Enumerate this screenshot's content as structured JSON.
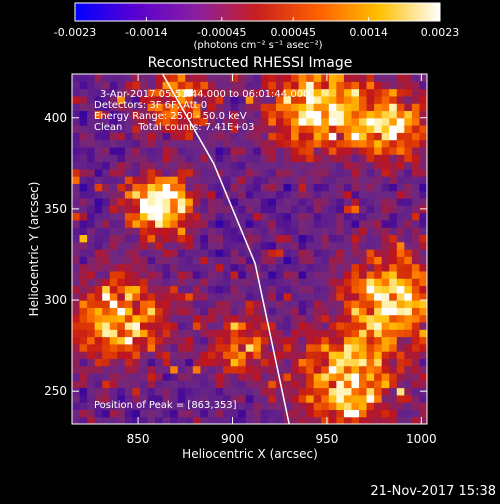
{
  "chart_data": {
    "type": "heatmap",
    "title": "Reconstructed RHESSI Image",
    "xlabel": "Heliocentric X (arcsec)",
    "ylabel": "Heliocentric Y (arcsec)",
    "xlim": [
      815,
      1003
    ],
    "ylim": [
      232,
      424
    ],
    "xticks": [
      850,
      900,
      950,
      1000
    ],
    "yticks": [
      250,
      300,
      350,
      400
    ],
    "colorbar": {
      "ticks": [
        -0.0023,
        -0.0014,
        -0.00045,
        0.00045,
        0.0014,
        0.0023
      ],
      "tick_labels": [
        "-0.0023",
        "-0.0014",
        "-0.00045",
        "0.00045",
        "0.0014",
        "0.0023"
      ],
      "units": "(photons cm⁻² s⁻¹ asec⁻²)",
      "colors": [
        "#0000ff",
        "#5a00d0",
        "#8a20a0",
        "#c82020",
        "#ff6000",
        "#ffc000",
        "#ffffff"
      ]
    },
    "annotations": {
      "time_range": "3-Apr-2017 05:51:44.000 to 06:01:44.000",
      "detectors": "Detectors: 3F 6F, Att 0",
      "energy": "Energy Range: 25.0 - 50.0 keV",
      "clean": "Clean     Total counts: 7.41E+03",
      "peak": "Position of Peak = [863,353]"
    },
    "peak": [
      863,
      353
    ],
    "hot_regions": [
      {
        "x": 862,
        "y": 352,
        "strength": 1.0,
        "radius": 16
      },
      {
        "x": 945,
        "y": 405,
        "strength": 0.8,
        "radius": 24
      },
      {
        "x": 985,
        "y": 395,
        "strength": 0.7,
        "radius": 20
      },
      {
        "x": 985,
        "y": 300,
        "strength": 0.75,
        "radius": 26
      },
      {
        "x": 840,
        "y": 290,
        "strength": 0.7,
        "radius": 24
      },
      {
        "x": 960,
        "y": 255,
        "strength": 0.7,
        "radius": 26
      },
      {
        "x": 870,
        "y": 410,
        "strength": 0.5,
        "radius": 20
      },
      {
        "x": 905,
        "y": 275,
        "strength": 0.5,
        "radius": 18
      }
    ],
    "limb_line": [
      [
        863,
        424
      ],
      [
        890,
        375
      ],
      [
        912,
        320
      ],
      [
        930,
        232
      ]
    ]
  },
  "footer": {
    "timestamp": "21-Nov-2017 15:38"
  }
}
